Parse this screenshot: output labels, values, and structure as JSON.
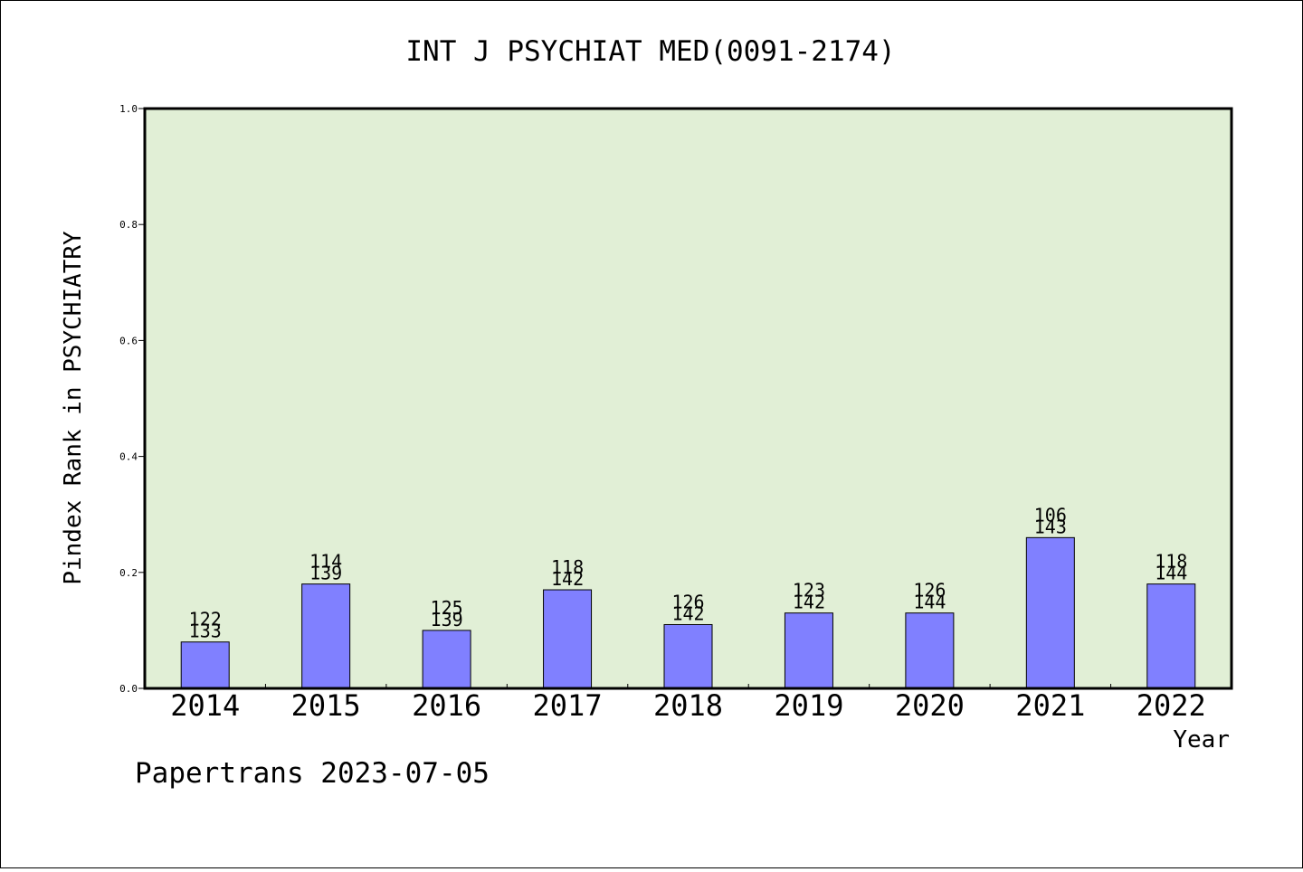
{
  "chart_data": {
    "type": "bar",
    "title": "INT J PSYCHIAT MED(0091-2174)",
    "xlabel": "Year",
    "ylabel": "Pindex Rank in PSYCHIATRY",
    "ylim": [
      0,
      1.0
    ],
    "yticks": [
      "0.0",
      "0.2",
      "0.4",
      "0.6",
      "0.8",
      "1.0"
    ],
    "categories": [
      "2014",
      "2015",
      "2016",
      "2017",
      "2018",
      "2019",
      "2020",
      "2021",
      "2022"
    ],
    "values": [
      0.08,
      0.18,
      0.1,
      0.17,
      0.11,
      0.13,
      0.13,
      0.26,
      0.18
    ],
    "rank_labels": [
      "122",
      "114",
      "125",
      "118",
      "126",
      "123",
      "126",
      "106",
      "118"
    ],
    "total_labels": [
      "133",
      "139",
      "139",
      "142",
      "142",
      "142",
      "144",
      "143",
      "144"
    ],
    "grid": false,
    "colors": {
      "plot_background": "#e1efd6",
      "bar": "#8080ff",
      "axis": "#000000"
    }
  },
  "footer": {
    "text": "Papertrans 2023-07-05"
  }
}
